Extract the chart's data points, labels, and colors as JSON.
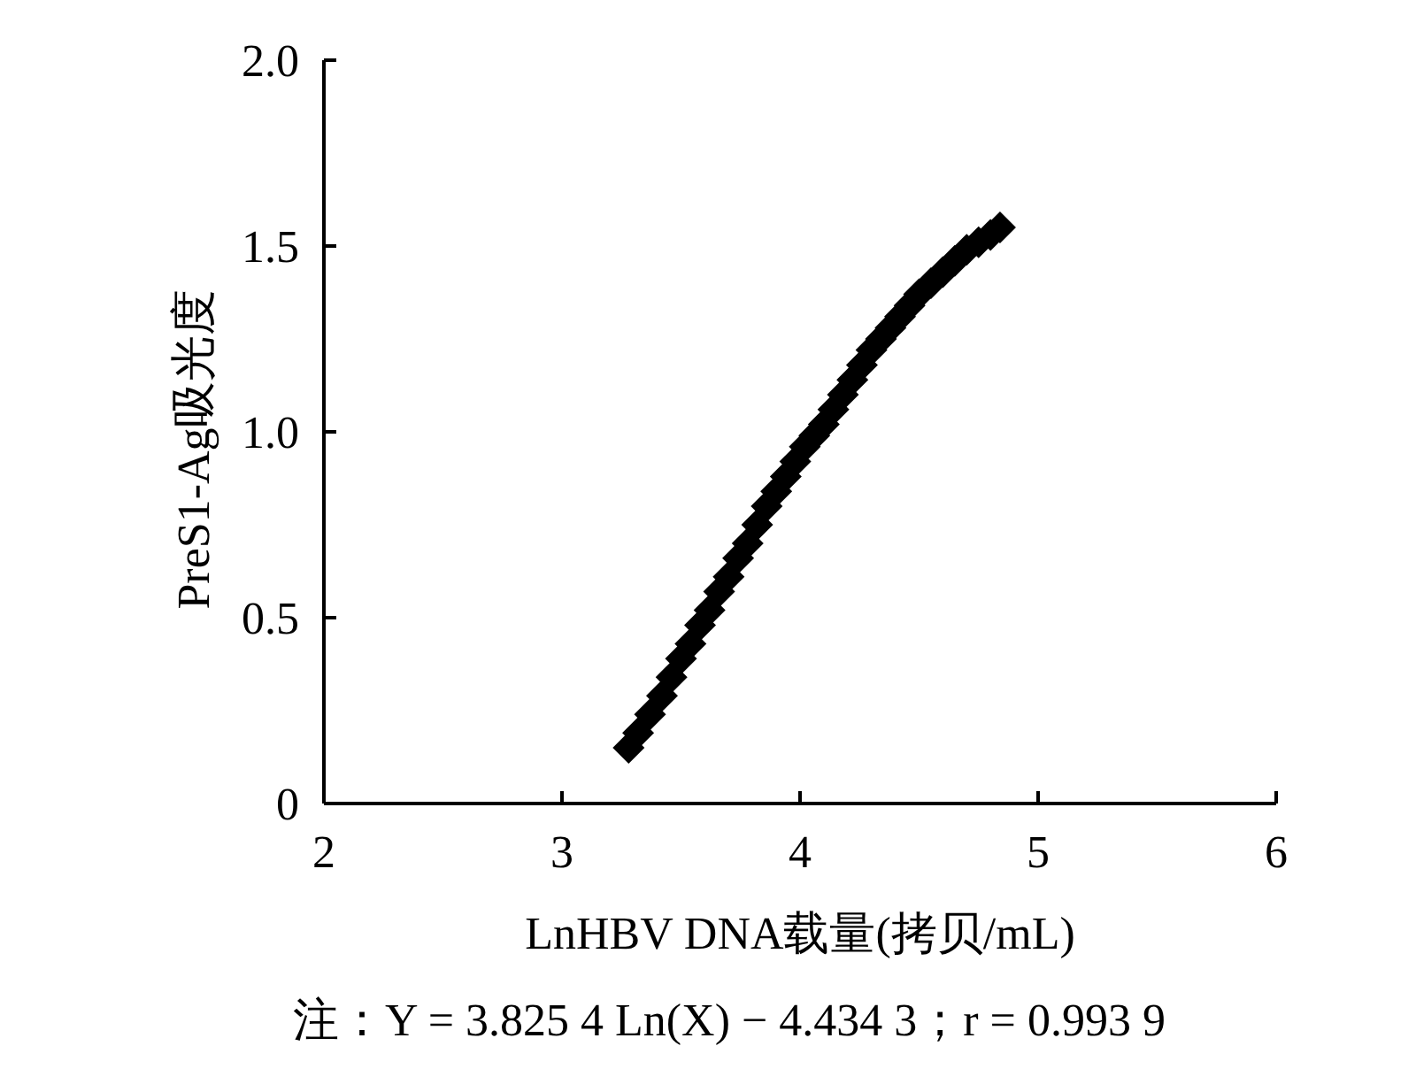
{
  "chart_data": {
    "type": "scatter",
    "xlabel": "LnHBV DNA载量(拷贝/mL)",
    "ylabel": "PreS1-Ag吸光度",
    "annotations": [
      "注：Y = 3.825 4 Ln(X) − 4.434 3；r = 0.993 9"
    ],
    "x": [
      3.28,
      3.32,
      3.37,
      3.42,
      3.46,
      3.5,
      3.54,
      3.58,
      3.62,
      3.66,
      3.7,
      3.74,
      3.78,
      3.82,
      3.86,
      3.9,
      3.94,
      3.98,
      4.02,
      4.06,
      4.1,
      4.14,
      4.18,
      4.22,
      4.26,
      4.3,
      4.34,
      4.38,
      4.42,
      4.46,
      4.5,
      4.55,
      4.6,
      4.65,
      4.7,
      4.75,
      4.8,
      4.84
    ],
    "series": [
      {
        "color": "#000000",
        "values": [
          0.15,
          0.19,
          0.24,
          0.29,
          0.34,
          0.39,
          0.43,
          0.48,
          0.52,
          0.57,
          0.61,
          0.66,
          0.7,
          0.75,
          0.8,
          0.84,
          0.88,
          0.92,
          0.96,
          0.99,
          1.02,
          1.06,
          1.1,
          1.14,
          1.18,
          1.22,
          1.25,
          1.28,
          1.31,
          1.34,
          1.37,
          1.4,
          1.43,
          1.46,
          1.49,
          1.51,
          1.53,
          1.55
        ]
      }
    ],
    "marker": "diamond",
    "grid": false,
    "xlim": [
      2,
      6
    ],
    "xticks": [
      2,
      3,
      4,
      5,
      6
    ],
    "ylim": [
      0,
      2
    ],
    "yticks": [
      0,
      {
        "value": 0.5,
        "label": "0.5"
      },
      {
        "value": 1,
        "label": "1.0"
      },
      {
        "value": 1.5,
        "label": "1.5"
      },
      {
        "value": 2,
        "label": "2.0"
      }
    ]
  }
}
